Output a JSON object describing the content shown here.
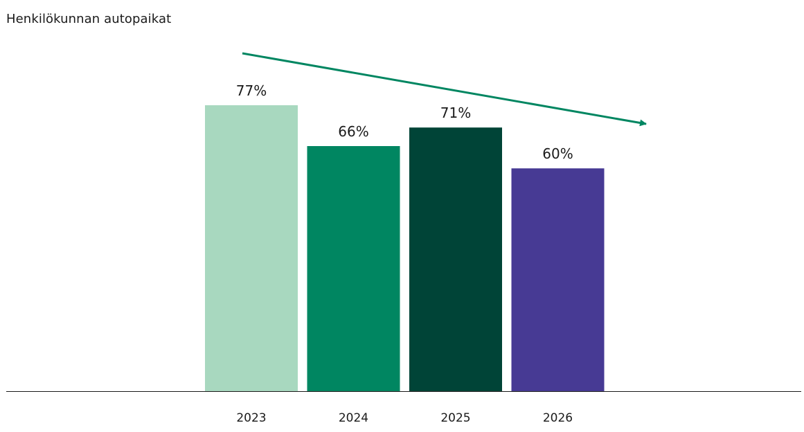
{
  "chart_data": {
    "type": "bar",
    "title": "Henkilökunnan autopaikat",
    "xlabel": "",
    "ylabel": "",
    "categories": [
      "2023",
      "2024",
      "2025",
      "2026"
    ],
    "values": [
      77,
      66,
      71,
      60
    ],
    "value_labels": [
      "77%",
      "66%",
      "71%",
      "60%"
    ],
    "unit": "%",
    "ylim": [
      0,
      100
    ],
    "grid": false,
    "legend": "none",
    "colors": [
      "#a8d8bf",
      "#008661",
      "#004437",
      "#473a94"
    ],
    "trend_arrow": {
      "direction": "down",
      "color": "#008661"
    }
  }
}
